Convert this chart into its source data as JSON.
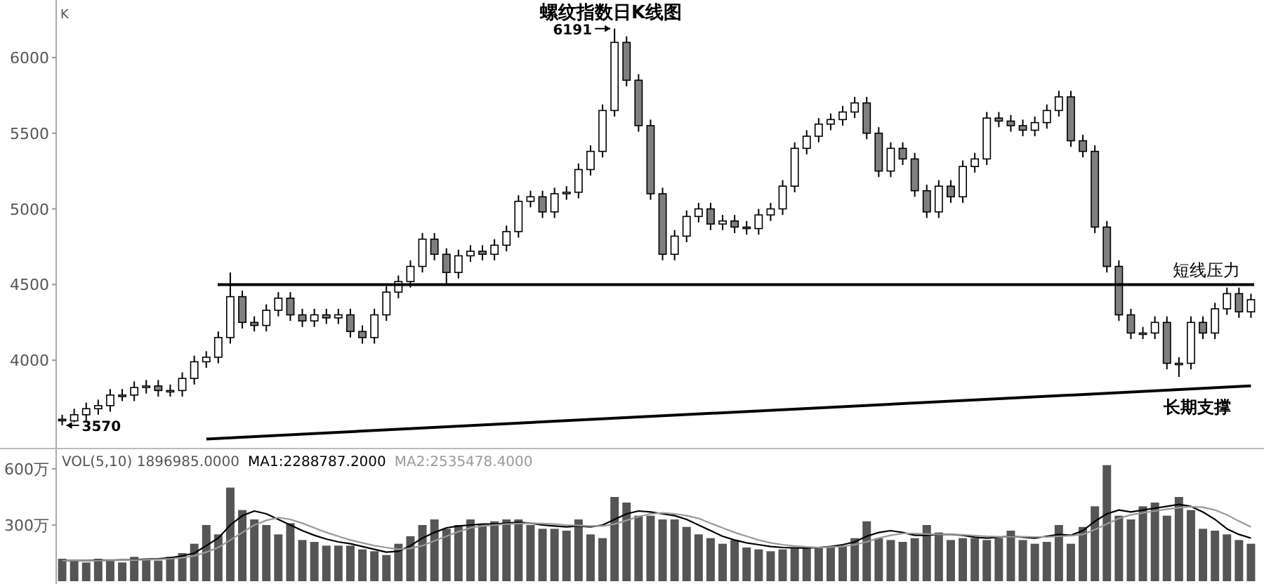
{
  "chart_data": [
    {
      "type": "candlestick",
      "title": "螺纹指数日K线图",
      "ylabel": "K",
      "colors": [
        "#7f7f7f",
        "#ffffff",
        "#ffffff",
        "#ffffff",
        "#ffffff",
        "#ffffff",
        "#ffffff",
        "#ffffff",
        "#7f7f7f",
        "#ffffff",
        "#ffffff",
        "#ffffff",
        "#ffffff",
        "#ffffff",
        "#ffffff",
        "#7f7f7f",
        "#7f7f7f",
        "#ffffff",
        "#ffffff",
        "#7f7f7f",
        "#7f7f7f",
        "#ffffff",
        "#7f7f7f",
        "#ffffff",
        "#7f7f7f",
        "#7f7f7f",
        "#ffffff",
        "#ffffff",
        "#ffffff",
        "#ffffff",
        "#ffffff",
        "#7f7f7f",
        "#7f7f7f",
        "#ffffff",
        "#ffffff",
        "#7f7f7f",
        "#ffffff",
        "#ffffff",
        "#ffffff",
        "#ffffff",
        "#7f7f7f",
        "#ffffff",
        "#ffffff",
        "#ffffff",
        "#ffffff",
        "#ffffff",
        "#ffffff",
        "#7f7f7f",
        "#7f7f7f",
        "#7f7f7f",
        "#7f7f7f",
        "#ffffff",
        "#ffffff",
        "#ffffff",
        "#7f7f7f",
        "#ffffff",
        "#7f7f7f",
        "#7f7f7f",
        "#ffffff",
        "#ffffff",
        "#ffffff",
        "#ffffff",
        "#ffffff",
        "#ffffff",
        "#ffffff",
        "#ffffff",
        "#ffffff",
        "#7f7f7f",
        "#7f7f7f",
        "#ffffff",
        "#7f7f7f",
        "#7f7f7f",
        "#7f7f7f",
        "#ffffff",
        "#7f7f7f",
        "#ffffff",
        "#ffffff",
        "#ffffff",
        "#7f7f7f",
        "#7f7f7f",
        "#7f7f7f",
        "#ffffff",
        "#ffffff",
        "#ffffff",
        "#7f7f7f",
        "#7f7f7f",
        "#7f7f7f",
        "#7f7f7f",
        "#7f7f7f",
        "#7f7f7f",
        "#ffffff",
        "#ffffff",
        "#7f7f7f",
        "#ffffff",
        "#ffffff",
        "#7f7f7f",
        "#ffffff",
        "#ffffff",
        "#7f7f7f",
        "#ffffff"
      ],
      "categories": [
        null,
        null,
        null,
        null,
        null,
        null,
        null,
        null,
        null,
        null,
        null,
        null,
        null,
        null,
        null,
        null,
        null,
        null,
        null,
        null,
        null,
        null,
        null,
        null,
        null,
        null,
        null,
        null,
        null,
        null,
        null,
        null,
        null,
        null,
        null,
        null,
        null,
        null,
        null,
        null,
        null,
        null,
        null,
        null,
        null,
        null,
        null,
        null,
        null,
        null,
        null,
        null,
        null,
        null,
        null,
        null,
        null,
        null,
        null,
        null,
        null,
        null,
        null,
        null,
        null,
        null,
        null,
        null,
        null,
        null,
        null,
        null,
        null,
        null,
        null,
        null,
        null,
        null,
        null,
        null,
        null,
        null,
        null,
        null,
        null,
        null,
        null,
        null,
        null,
        null,
        null,
        null,
        null,
        null,
        null,
        null,
        null,
        null,
        null,
        null
      ],
      "ohlc": [
        [
          3610,
          3640,
          3570,
          3600
        ],
        [
          3600,
          3680,
          3590,
          3640
        ],
        [
          3640,
          3720,
          3600,
          3680
        ],
        [
          3680,
          3740,
          3640,
          3700
        ],
        [
          3700,
          3810,
          3660,
          3770
        ],
        [
          3770,
          3810,
          3730,
          3770
        ],
        [
          3770,
          3860,
          3730,
          3820
        ],
        [
          3820,
          3870,
          3780,
          3830
        ],
        [
          3830,
          3870,
          3760,
          3800
        ],
        [
          3800,
          3840,
          3760,
          3800
        ],
        [
          3800,
          3920,
          3760,
          3880
        ],
        [
          3880,
          4030,
          3840,
          3990
        ],
        [
          3990,
          4060,
          3950,
          4020
        ],
        [
          4020,
          4190,
          3980,
          4150
        ],
        [
          4150,
          4580,
          4110,
          4420
        ],
        [
          4420,
          4460,
          4210,
          4250
        ],
        [
          4250,
          4290,
          4190,
          4230
        ],
        [
          4230,
          4370,
          4190,
          4330
        ],
        [
          4330,
          4450,
          4290,
          4410
        ],
        [
          4410,
          4450,
          4260,
          4300
        ],
        [
          4300,
          4340,
          4220,
          4260
        ],
        [
          4260,
          4340,
          4220,
          4300
        ],
        [
          4300,
          4340,
          4240,
          4280
        ],
        [
          4280,
          4340,
          4240,
          4300
        ],
        [
          4300,
          4340,
          4150,
          4190
        ],
        [
          4190,
          4230,
          4110,
          4150
        ],
        [
          4150,
          4340,
          4110,
          4300
        ],
        [
          4300,
          4490,
          4260,
          4450
        ],
        [
          4450,
          4560,
          4410,
          4520
        ],
        [
          4520,
          4660,
          4480,
          4620
        ],
        [
          4620,
          4840,
          4580,
          4800
        ],
        [
          4800,
          4840,
          4660,
          4700
        ],
        [
          4700,
          4740,
          4500,
          4580
        ],
        [
          4580,
          4730,
          4540,
          4690
        ],
        [
          4690,
          4760,
          4650,
          4720
        ],
        [
          4720,
          4760,
          4660,
          4700
        ],
        [
          4700,
          4800,
          4660,
          4760
        ],
        [
          4760,
          4890,
          4720,
          4850
        ],
        [
          4850,
          5090,
          4810,
          5050
        ],
        [
          5050,
          5120,
          5010,
          5080
        ],
        [
          5080,
          5120,
          4940,
          4980
        ],
        [
          4980,
          5140,
          4940,
          5100
        ],
        [
          5100,
          5150,
          5060,
          5110
        ],
        [
          5110,
          5300,
          5070,
          5260
        ],
        [
          5260,
          5420,
          5220,
          5380
        ],
        [
          5380,
          5690,
          5340,
          5650
        ],
        [
          5650,
          6191,
          5610,
          6100
        ],
        [
          6100,
          6140,
          5810,
          5850
        ],
        [
          5850,
          5890,
          5510,
          5550
        ],
        [
          5550,
          5590,
          5060,
          5100
        ],
        [
          5100,
          5140,
          4660,
          4700
        ],
        [
          4700,
          4860,
          4660,
          4820
        ],
        [
          4820,
          4990,
          4780,
          4950
        ],
        [
          4950,
          5040,
          4910,
          5000
        ],
        [
          5000,
          5040,
          4860,
          4900
        ],
        [
          4900,
          4960,
          4860,
          4920
        ],
        [
          4920,
          4960,
          4840,
          4880
        ],
        [
          4880,
          4920,
          4830,
          4870
        ],
        [
          4870,
          5000,
          4830,
          4960
        ],
        [
          4960,
          5040,
          4920,
          5000
        ],
        [
          5000,
          5190,
          4960,
          5150
        ],
        [
          5150,
          5440,
          5110,
          5400
        ],
        [
          5400,
          5520,
          5360,
          5480
        ],
        [
          5480,
          5600,
          5440,
          5560
        ],
        [
          5560,
          5630,
          5520,
          5590
        ],
        [
          5590,
          5680,
          5550,
          5640
        ],
        [
          5640,
          5740,
          5600,
          5700
        ],
        [
          5700,
          5740,
          5460,
          5500
        ],
        [
          5500,
          5540,
          5210,
          5250
        ],
        [
          5250,
          5440,
          5210,
          5400
        ],
        [
          5400,
          5440,
          5290,
          5330
        ],
        [
          5330,
          5370,
          5080,
          5120
        ],
        [
          5120,
          5160,
          4940,
          4980
        ],
        [
          4980,
          5190,
          4940,
          5150
        ],
        [
          5150,
          5190,
          5040,
          5080
        ],
        [
          5080,
          5320,
          5040,
          5280
        ],
        [
          5280,
          5370,
          5240,
          5330
        ],
        [
          5330,
          5640,
          5290,
          5600
        ],
        [
          5600,
          5640,
          5540,
          5580
        ],
        [
          5580,
          5620,
          5510,
          5550
        ],
        [
          5550,
          5590,
          5480,
          5520
        ],
        [
          5520,
          5610,
          5480,
          5570
        ],
        [
          5570,
          5690,
          5530,
          5650
        ],
        [
          5650,
          5780,
          5610,
          5740
        ],
        [
          5740,
          5780,
          5410,
          5450
        ],
        [
          5450,
          5490,
          5340,
          5380
        ],
        [
          5380,
          5420,
          4840,
          4880
        ],
        [
          4880,
          4920,
          4580,
          4620
        ],
        [
          4620,
          4660,
          4260,
          4300
        ],
        [
          4300,
          4340,
          4140,
          4180
        ],
        [
          4180,
          4220,
          4140,
          4180
        ],
        [
          4180,
          4290,
          4140,
          4250
        ],
        [
          4250,
          4290,
          3940,
          3980
        ],
        [
          3980,
          4020,
          3890,
          3980
        ],
        [
          3980,
          4290,
          3940,
          4250
        ],
        [
          4250,
          4290,
          4140,
          4180
        ],
        [
          4180,
          4380,
          4140,
          4340
        ],
        [
          4340,
          4480,
          4300,
          4440
        ],
        [
          4440,
          4480,
          4280,
          4320
        ],
        [
          4320,
          4440,
          4280,
          4400
        ]
      ],
      "series": [
        {
          "type": "line",
          "name": "长期支撑",
          "color": "#000000",
          "values": [
            null,
            null,
            null,
            null,
            null,
            null,
            null,
            null,
            null,
            null,
            null,
            null,
            3480,
            null,
            null,
            null,
            null,
            null,
            null,
            null,
            null,
            null,
            null,
            null,
            null,
            null,
            null,
            null,
            null,
            null,
            null,
            null,
            null,
            null,
            null,
            null,
            null,
            null,
            null,
            null,
            null,
            null,
            null,
            null,
            null,
            null,
            null,
            null,
            null,
            null,
            null,
            null,
            null,
            null,
            null,
            null,
            null,
            null,
            null,
            null,
            null,
            null,
            null,
            null,
            null,
            null,
            null,
            null,
            null,
            null,
            null,
            null,
            null,
            null,
            null,
            null,
            null,
            null,
            null,
            null,
            null,
            null,
            null,
            null,
            null,
            null,
            null,
            null,
            null,
            null,
            null,
            null,
            null,
            null,
            null,
            null,
            null,
            null,
            null,
            3830
          ]
        }
      ],
      "ref_lines": [
        {
          "axis": "y",
          "value": 4500,
          "label": "短线压力",
          "color": "#000000"
        }
      ],
      "annotations": [
        "6191",
        "3570"
      ],
      "ylim": [
        3440,
        6380
      ],
      "yticks": [
        4000,
        4500,
        5000,
        5500,
        6000
      ]
    },
    {
      "type": "bar",
      "categories": [
        null,
        null,
        null,
        null,
        null,
        null,
        null,
        null,
        null,
        null,
        null,
        null,
        null,
        null,
        null,
        null,
        null,
        null,
        null,
        null,
        null,
        null,
        null,
        null,
        null,
        null,
        null,
        null,
        null,
        null,
        null,
        null,
        null,
        null,
        null,
        null,
        null,
        null,
        null,
        null,
        null,
        null,
        null,
        null,
        null,
        null,
        null,
        null,
        null,
        null,
        null,
        null,
        null,
        null,
        null,
        null,
        null,
        null,
        null,
        null,
        null,
        null,
        null,
        null,
        null,
        null,
        null,
        null,
        null,
        null,
        null,
        null,
        null,
        null,
        null,
        null,
        null,
        null,
        null,
        null,
        null,
        null,
        null,
        null,
        null,
        null,
        null,
        null,
        null,
        null,
        null,
        null,
        null,
        null,
        null,
        null,
        null,
        null,
        null,
        null
      ],
      "series": [
        {
          "name": "VOL(5,10) 1896985.0000",
          "color": "#555555",
          "values": [
            120,
            110,
            100,
            120,
            110,
            100,
            130,
            120,
            110,
            130,
            150,
            200,
            300,
            250,
            500,
            380,
            330,
            300,
            250,
            310,
            220,
            210,
            190,
            190,
            190,
            170,
            160,
            140,
            200,
            240,
            300,
            330,
            280,
            300,
            330,
            300,
            320,
            330,
            330,
            300,
            280,
            280,
            270,
            330,
            250,
            230,
            450,
            420,
            350,
            350,
            330,
            330,
            290,
            250,
            230,
            200,
            220,
            180,
            170,
            160,
            170,
            175,
            180,
            180,
            180,
            190,
            230,
            320,
            230,
            220,
            210,
            230,
            300,
            260,
            220,
            230,
            230,
            220,
            230,
            270,
            220,
            200,
            210,
            300,
            200,
            290,
            400,
            620,
            350,
            330,
            400,
            420,
            350,
            450,
            380,
            280,
            270,
            250,
            220,
            200
          ]
        },
        {
          "type": "line",
          "name": "MA1:2288787.2000",
          "color": "#000000",
          "values": [
            110,
            110,
            110,
            112,
            112,
            114,
            115,
            118,
            120,
            125,
            135,
            150,
            190,
            230,
            300,
            350,
            375,
            360,
            330,
            300,
            270,
            245,
            225,
            210,
            200,
            185,
            170,
            155,
            160,
            190,
            230,
            260,
            285,
            295,
            300,
            305,
            305,
            310,
            315,
            310,
            300,
            295,
            290,
            295,
            290,
            300,
            330,
            360,
            375,
            370,
            360,
            350,
            330,
            300,
            270,
            240,
            220,
            205,
            195,
            185,
            180,
            178,
            178,
            180,
            185,
            195,
            210,
            240,
            260,
            270,
            260,
            245,
            245,
            250,
            250,
            245,
            235,
            230,
            235,
            240,
            235,
            230,
            240,
            250,
            245,
            270,
            320,
            360,
            380,
            370,
            380,
            390,
            400,
            410,
            400,
            370,
            330,
            280,
            250,
            230
          ]
        },
        {
          "type": "line",
          "name": "MA2:2535478.4000",
          "color": "#999999",
          "values": [
            110,
            110,
            110,
            110,
            111,
            112,
            113,
            115,
            117,
            120,
            125,
            135,
            155,
            180,
            220,
            260,
            300,
            325,
            340,
            330,
            310,
            285,
            260,
            240,
            220,
            205,
            190,
            180,
            170,
            175,
            190,
            215,
            240,
            265,
            285,
            295,
            300,
            305,
            308,
            310,
            308,
            305,
            300,
            298,
            295,
            295,
            305,
            325,
            345,
            360,
            365,
            360,
            350,
            335,
            310,
            285,
            260,
            240,
            220,
            205,
            195,
            188,
            183,
            180,
            182,
            186,
            195,
            210,
            230,
            245,
            255,
            255,
            252,
            250,
            250,
            248,
            244,
            240,
            238,
            238,
            238,
            236,
            236,
            240,
            243,
            250,
            275,
            305,
            335,
            355,
            365,
            375,
            385,
            392,
            398,
            395,
            380,
            355,
            320,
            290
          ]
        }
      ],
      "ylim": [
        0,
        690
      ],
      "yticks": [
        {
          "value": 300,
          "label": "300万"
        },
        {
          "value": 600,
          "label": "600万"
        }
      ]
    }
  ]
}
